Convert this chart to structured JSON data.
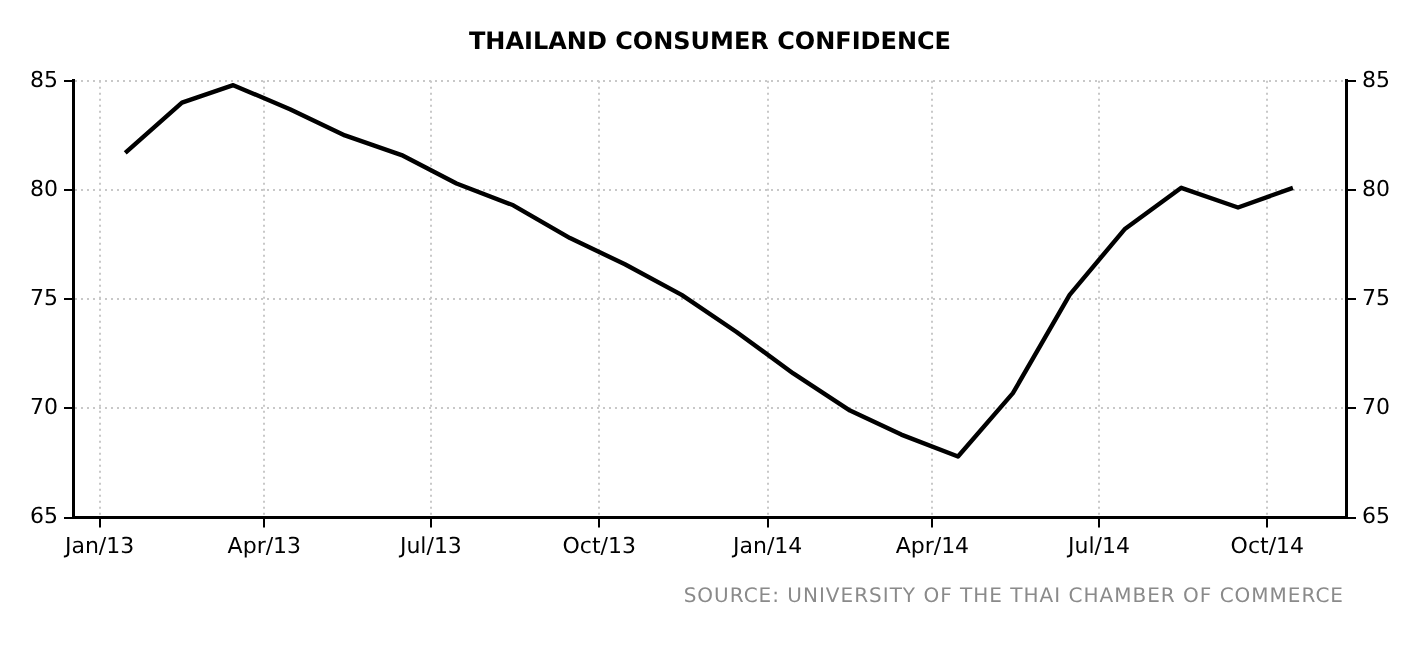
{
  "chart_data": {
    "type": "line",
    "title": "THAILAND CONSUMER CONFIDENCE",
    "x": [
      "2013-01-15",
      "2013-02-15",
      "2013-03-15",
      "2013-04-15",
      "2013-05-15",
      "2013-06-15",
      "2013-07-15",
      "2013-08-15",
      "2013-09-15",
      "2013-10-15",
      "2013-11-15",
      "2013-12-15",
      "2014-01-15",
      "2014-02-15",
      "2014-03-15",
      "2014-04-15",
      "2014-05-15",
      "2014-06-15",
      "2014-07-15",
      "2014-08-15",
      "2014-09-15",
      "2014-10-15"
    ],
    "series": [
      {
        "color": "#000000",
        "values": [
          81.7,
          84.0,
          84.8,
          83.7,
          82.5,
          81.6,
          80.3,
          79.3,
          77.8,
          76.6,
          75.2,
          73.5,
          71.6,
          69.9,
          68.8,
          67.8,
          70.7,
          75.2,
          78.2,
          80.1,
          79.2,
          80.1
        ]
      }
    ],
    "xlim": [
      "2012-12-18",
      "2014-11-13"
    ],
    "xticks": [
      {
        "value": "2013-01-01",
        "label": "Jan/13"
      },
      {
        "value": "2013-04-01",
        "label": "Apr/13"
      },
      {
        "value": "2013-07-01",
        "label": "Jul/13"
      },
      {
        "value": "2013-10-01",
        "label": "Oct/13"
      },
      {
        "value": "2014-01-01",
        "label": "Jan/14"
      },
      {
        "value": "2014-04-01",
        "label": "Apr/14"
      },
      {
        "value": "2014-07-01",
        "label": "Jul/14"
      },
      {
        "value": "2014-10-01",
        "label": "Oct/14"
      }
    ],
    "ylim": [
      65,
      85
    ],
    "yticks": [
      65,
      70,
      75,
      80,
      85
    ],
    "y2lim": [
      65,
      85
    ],
    "y2ticks": [
      65,
      70,
      75,
      80,
      85
    ],
    "grid": true,
    "legend": false,
    "marker": "none",
    "line_style": "solid",
    "annotations": [
      "SOURCE: UNIVERSITY OF THE THAI CHAMBER OF COMMERCE"
    ]
  }
}
